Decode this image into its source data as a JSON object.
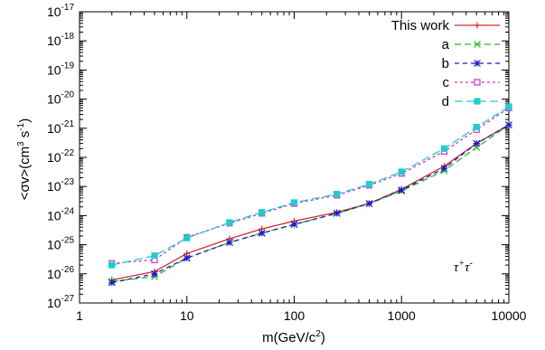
{
  "chart_data": {
    "type": "line",
    "title": "",
    "xlabel": "m(GeV/c",
    "xlabel_sup": "2",
    "xlabel_tail": ")",
    "ylabel": "<σv>(cm",
    "ylabel_sup1": "3",
    "ylabel_mid": " s",
    "ylabel_sup2": "-1",
    "ylabel_tail": ")",
    "xscale": "log",
    "yscale": "log",
    "xlim": [
      1,
      10000
    ],
    "ylim": [
      1e-27,
      1e-17
    ],
    "x_ticks": [
      {
        "value": 1,
        "label": "1"
      },
      {
        "value": 10,
        "label": "10"
      },
      {
        "value": 100,
        "label": "100"
      },
      {
        "value": 1000,
        "label": "1000"
      },
      {
        "value": 10000,
        "label": "10000"
      }
    ],
    "y_ticks": [
      {
        "value": 1e-17,
        "base": "10",
        "exp": "-17"
      },
      {
        "value": 1e-18,
        "base": "10",
        "exp": "-18"
      },
      {
        "value": 1e-19,
        "base": "10",
        "exp": "-19"
      },
      {
        "value": 1e-20,
        "base": "10",
        "exp": "-20"
      },
      {
        "value": 1e-21,
        "base": "10",
        "exp": "-21"
      },
      {
        "value": 1e-22,
        "base": "10",
        "exp": "-22"
      },
      {
        "value": 1e-23,
        "base": "10",
        "exp": "-23"
      },
      {
        "value": 1e-24,
        "base": "10",
        "exp": "-24"
      },
      {
        "value": 1e-25,
        "base": "10",
        "exp": "-25"
      },
      {
        "value": 1e-26,
        "base": "10",
        "exp": "-26"
      },
      {
        "value": 1e-27,
        "base": "10",
        "exp": "-27"
      }
    ],
    "grid": false,
    "legend_position": "top-right",
    "annotation": {
      "base": "τ",
      "sup1": "+",
      "mid": "τ",
      "sup2": "-"
    },
    "x": [
      2,
      5,
      10,
      25,
      50,
      100,
      250,
      500,
      1000,
      2500,
      5000,
      10000
    ],
    "series": [
      {
        "name": "This work",
        "color": "#d62728",
        "dash": "",
        "marker": "plus",
        "values": [
          6.2e-27,
          1.2e-26,
          5e-26,
          1.6e-25,
          3.5e-25,
          6.5e-25,
          1.3e-24,
          2.6e-24,
          8e-24,
          5e-23,
          3e-22,
          1.3e-21
        ]
      },
      {
        "name": "a",
        "color": "#22bb22",
        "dash": "7,4",
        "marker": "x",
        "values": [
          5.5e-27,
          8e-27,
          3.5e-26,
          1.2e-25,
          2.5e-25,
          5e-25,
          1.2e-24,
          2.6e-24,
          7e-24,
          3.5e-23,
          2.2e-22,
          1.3e-21
        ]
      },
      {
        "name": "b",
        "color": "#1a1acc",
        "dash": "5,4",
        "marker": "star",
        "values": [
          5e-27,
          1e-26,
          3.5e-26,
          1.2e-25,
          2.5e-25,
          5e-25,
          1.2e-24,
          2.6e-24,
          7.5e-24,
          4.2e-23,
          3e-22,
          1.3e-21
        ]
      },
      {
        "name": "c",
        "color": "#cc33cc",
        "dash": "3,3",
        "marker": "square-open",
        "values": [
          2.3e-26,
          3e-26,
          1.8e-25,
          5.5e-25,
          1.2e-24,
          2.6e-24,
          5e-24,
          1.1e-23,
          2.8e-23,
          1.6e-22,
          9e-22,
          5e-21
        ]
      },
      {
        "name": "d",
        "color": "#22cccc",
        "dash": "9,4",
        "marker": "square-filled",
        "values": [
          2e-26,
          4.2e-26,
          1.7e-25,
          5.8e-25,
          1.3e-24,
          2.8e-24,
          5.5e-24,
          1.2e-23,
          3.2e-23,
          2e-22,
          1.1e-21,
          5.5e-21
        ]
      }
    ]
  }
}
